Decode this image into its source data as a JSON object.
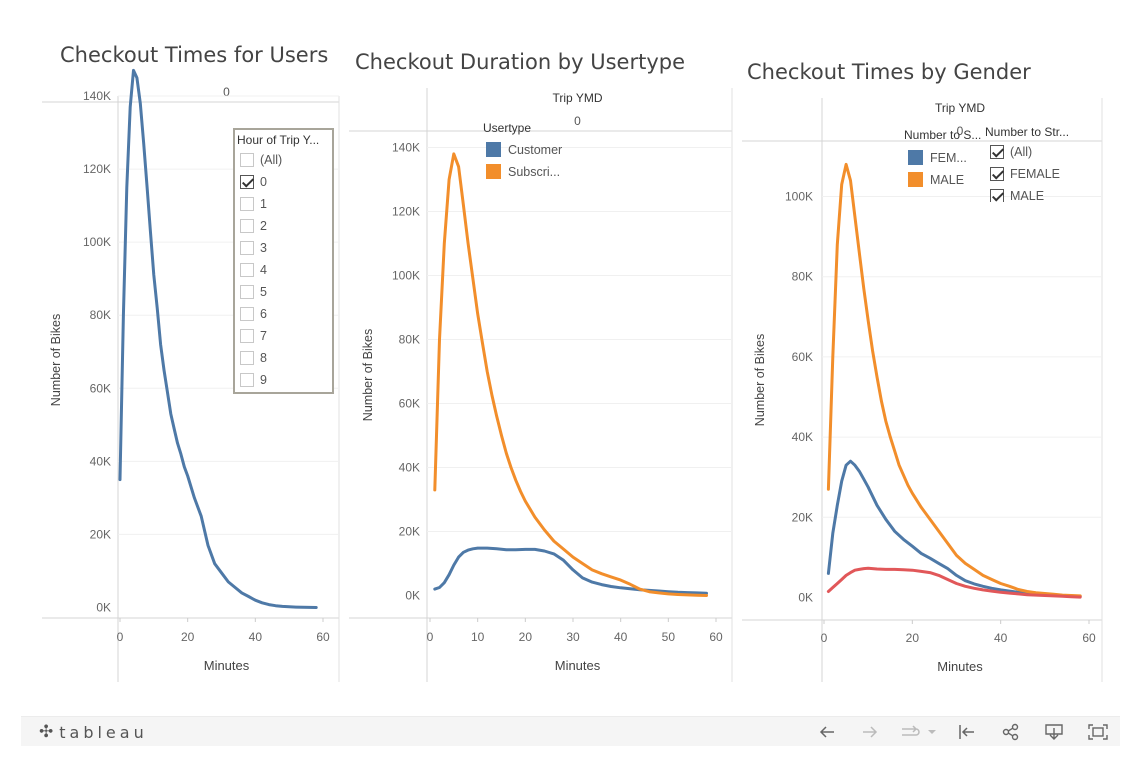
{
  "chart_data": [
    {
      "type": "line",
      "title": "Checkout Times for Users",
      "column_header": "0",
      "xlabel": "Minutes",
      "ylabel": "Number of Bikes",
      "xlim": [
        0,
        60
      ],
      "ylim": [
        0,
        150000
      ],
      "x_ticks": [
        0,
        20,
        40,
        60
      ],
      "y_ticks": [
        0,
        20000,
        40000,
        60000,
        80000,
        100000,
        120000,
        140000
      ],
      "y_tick_labels": [
        "0K",
        "20K",
        "40K",
        "60K",
        "80K",
        "100K",
        "120K",
        "140K"
      ],
      "grid": true,
      "series": [
        {
          "color": "#4e79a7",
          "x": [
            0,
            1,
            2,
            3,
            4,
            5,
            6,
            7,
            8,
            9,
            10,
            11,
            12,
            13,
            14,
            15,
            16,
            17,
            18,
            19,
            20,
            22,
            24,
            26,
            28,
            30,
            32,
            34,
            36,
            38,
            40,
            42,
            44,
            46,
            48,
            50,
            52,
            54,
            56,
            58
          ],
          "y": [
            35000,
            80000,
            115000,
            137000,
            147000,
            145000,
            138000,
            127000,
            115000,
            103000,
            91000,
            82000,
            72000,
            65000,
            59000,
            53000,
            49000,
            45000,
            42000,
            38500,
            36000,
            30000,
            25000,
            17000,
            12000,
            9500,
            7000,
            5500,
            4000,
            3000,
            2000,
            1300,
            800,
            500,
            300,
            200,
            100,
            50,
            20,
            0
          ]
        }
      ]
    },
    {
      "type": "line",
      "title": "Checkout Duration by Usertype",
      "column_header_title": "Trip YMD",
      "column_header": "0",
      "xlabel": "Minutes",
      "ylabel": "Number of Bikes",
      "xlim": [
        0,
        60
      ],
      "ylim": [
        0,
        145000
      ],
      "x_ticks": [
        0,
        10,
        20,
        30,
        40,
        50,
        60
      ],
      "y_ticks": [
        0,
        20000,
        40000,
        60000,
        80000,
        100000,
        120000,
        140000
      ],
      "y_tick_labels": [
        "0K",
        "20K",
        "40K",
        "60K",
        "80K",
        "100K",
        "120K",
        "140K"
      ],
      "grid": true,
      "legend": {
        "title": "Usertype",
        "placement": "top-left",
        "items": [
          "Customer",
          "Subscri..."
        ]
      },
      "series": [
        {
          "name": "Customer",
          "color": "#4e79a7",
          "x": [
            1,
            2,
            3,
            4,
            5,
            6,
            7,
            8,
            9,
            10,
            12,
            14,
            16,
            18,
            20,
            22,
            24,
            26,
            28,
            30,
            32,
            34,
            36,
            38,
            40,
            42,
            44,
            46,
            48,
            50,
            52,
            54,
            56,
            58
          ],
          "y": [
            2000,
            2500,
            4000,
            6500,
            9500,
            12000,
            13500,
            14200,
            14600,
            14800,
            14800,
            14600,
            14300,
            14300,
            14400,
            14400,
            13900,
            13000,
            11000,
            8000,
            5500,
            4200,
            3400,
            2800,
            2400,
            2100,
            1800,
            1600,
            1400,
            1200,
            1000,
            900,
            800,
            700
          ]
        },
        {
          "name": "Subscri...",
          "color": "#f28e2b",
          "x": [
            1,
            2,
            3,
            4,
            5,
            6,
            7,
            8,
            9,
            10,
            11,
            12,
            13,
            14,
            15,
            16,
            17,
            18,
            19,
            20,
            22,
            24,
            26,
            28,
            30,
            32,
            34,
            36,
            38,
            40,
            42,
            44,
            46,
            48,
            50,
            52,
            54,
            56,
            58
          ],
          "y": [
            33000,
            80000,
            110000,
            130000,
            138000,
            134000,
            122000,
            110000,
            99000,
            88000,
            79000,
            70000,
            62500,
            56000,
            50000,
            44500,
            40000,
            36000,
            32500,
            29500,
            24500,
            20500,
            17000,
            14500,
            12000,
            10000,
            8000,
            6800,
            5800,
            4800,
            3500,
            2000,
            1200,
            800,
            500,
            300,
            200,
            100,
            0
          ]
        }
      ]
    },
    {
      "type": "line",
      "title": "Checkout Times by Gender",
      "column_header_title": "Trip YMD",
      "column_header": "0",
      "xlabel": "Minutes",
      "ylabel": "Number of Bikes",
      "xlim": [
        0,
        60
      ],
      "ylim": [
        0,
        115000
      ],
      "x_ticks": [
        0,
        20,
        40,
        60
      ],
      "y_ticks": [
        0,
        20000,
        40000,
        60000,
        80000,
        100000
      ],
      "y_tick_labels": [
        "0K",
        "20K",
        "40K",
        "60K",
        "80K",
        "100K"
      ],
      "grid": true,
      "legend": {
        "title": "Number to S...",
        "placement": "top-right",
        "items": [
          "FEM...",
          "MALE"
        ]
      },
      "series": [
        {
          "name": "FEM...",
          "color": "#4e79a7",
          "x": [
            1,
            2,
            3,
            4,
            5,
            6,
            7,
            8,
            9,
            10,
            12,
            14,
            16,
            18,
            20,
            22,
            24,
            26,
            28,
            30,
            32,
            34,
            36,
            38,
            40,
            42,
            44,
            46,
            48,
            50,
            52,
            54,
            56,
            58
          ],
          "y": [
            6000,
            16000,
            23000,
            29000,
            33000,
            34000,
            33000,
            31500,
            29500,
            27500,
            23000,
            19500,
            16500,
            14500,
            12800,
            11000,
            9800,
            8500,
            7200,
            5500,
            4200,
            3400,
            2800,
            2300,
            1900,
            1600,
            1300,
            1100,
            900,
            700,
            600,
            500,
            400,
            300
          ]
        },
        {
          "name": "MALE",
          "color": "#f28e2b",
          "x": [
            1,
            2,
            3,
            4,
            5,
            6,
            7,
            8,
            9,
            10,
            11,
            12,
            13,
            14,
            15,
            16,
            17,
            18,
            19,
            20,
            22,
            24,
            26,
            28,
            30,
            32,
            34,
            36,
            38,
            40,
            42,
            44,
            46,
            48,
            50,
            52,
            54,
            56,
            58
          ],
          "y": [
            27000,
            60000,
            88000,
            103000,
            108000,
            104000,
            95000,
            86000,
            77000,
            69000,
            61500,
            55000,
            49000,
            44000,
            40000,
            36500,
            33000,
            30500,
            28000,
            26000,
            22500,
            19500,
            16500,
            13500,
            10500,
            8500,
            7000,
            5500,
            4500,
            3500,
            2800,
            2000,
            1500,
            1200,
            1000,
            800,
            600,
            500,
            400
          ]
        },
        {
          "color": "#e15759",
          "x": [
            1,
            2,
            3,
            4,
            5,
            6,
            7,
            8,
            9,
            10,
            12,
            14,
            16,
            18,
            20,
            22,
            24,
            26,
            28,
            30,
            32,
            34,
            36,
            38,
            40,
            42,
            44,
            46,
            48,
            50,
            52,
            54,
            56,
            58
          ],
          "y": [
            1500,
            2500,
            3500,
            4500,
            5500,
            6200,
            6800,
            7000,
            7200,
            7300,
            7100,
            7000,
            7000,
            6900,
            6800,
            6500,
            6200,
            5500,
            4500,
            3500,
            2800,
            2300,
            1900,
            1600,
            1300,
            1100,
            900,
            700,
            600,
            500,
            400,
            300,
            200,
            100
          ]
        }
      ]
    }
  ],
  "filter": {
    "title": "Hour of Trip Y...",
    "items": [
      {
        "label": "(All)",
        "checked": false
      },
      {
        "label": "0",
        "checked": true
      },
      {
        "label": "1",
        "checked": false
      },
      {
        "label": "2",
        "checked": false
      },
      {
        "label": "3",
        "checked": false
      },
      {
        "label": "4",
        "checked": false
      },
      {
        "label": "5",
        "checked": false
      },
      {
        "label": "6",
        "checked": false
      },
      {
        "label": "7",
        "checked": false
      },
      {
        "label": "8",
        "checked": false
      },
      {
        "label": "9",
        "checked": false
      }
    ]
  },
  "gender_filter": {
    "title": "Number to Str...",
    "items": [
      {
        "label": "(All)",
        "checked": true
      },
      {
        "label": "FEMALE",
        "checked": true
      },
      {
        "label": "MALE",
        "checked": true
      }
    ]
  },
  "toolbar": {
    "brand": "tableau",
    "icons": [
      "undo-icon",
      "redo-icon",
      "revert-icon",
      "revert-menu-icon",
      "reset-icon",
      "share-icon",
      "download-icon",
      "fullscreen-icon"
    ]
  }
}
